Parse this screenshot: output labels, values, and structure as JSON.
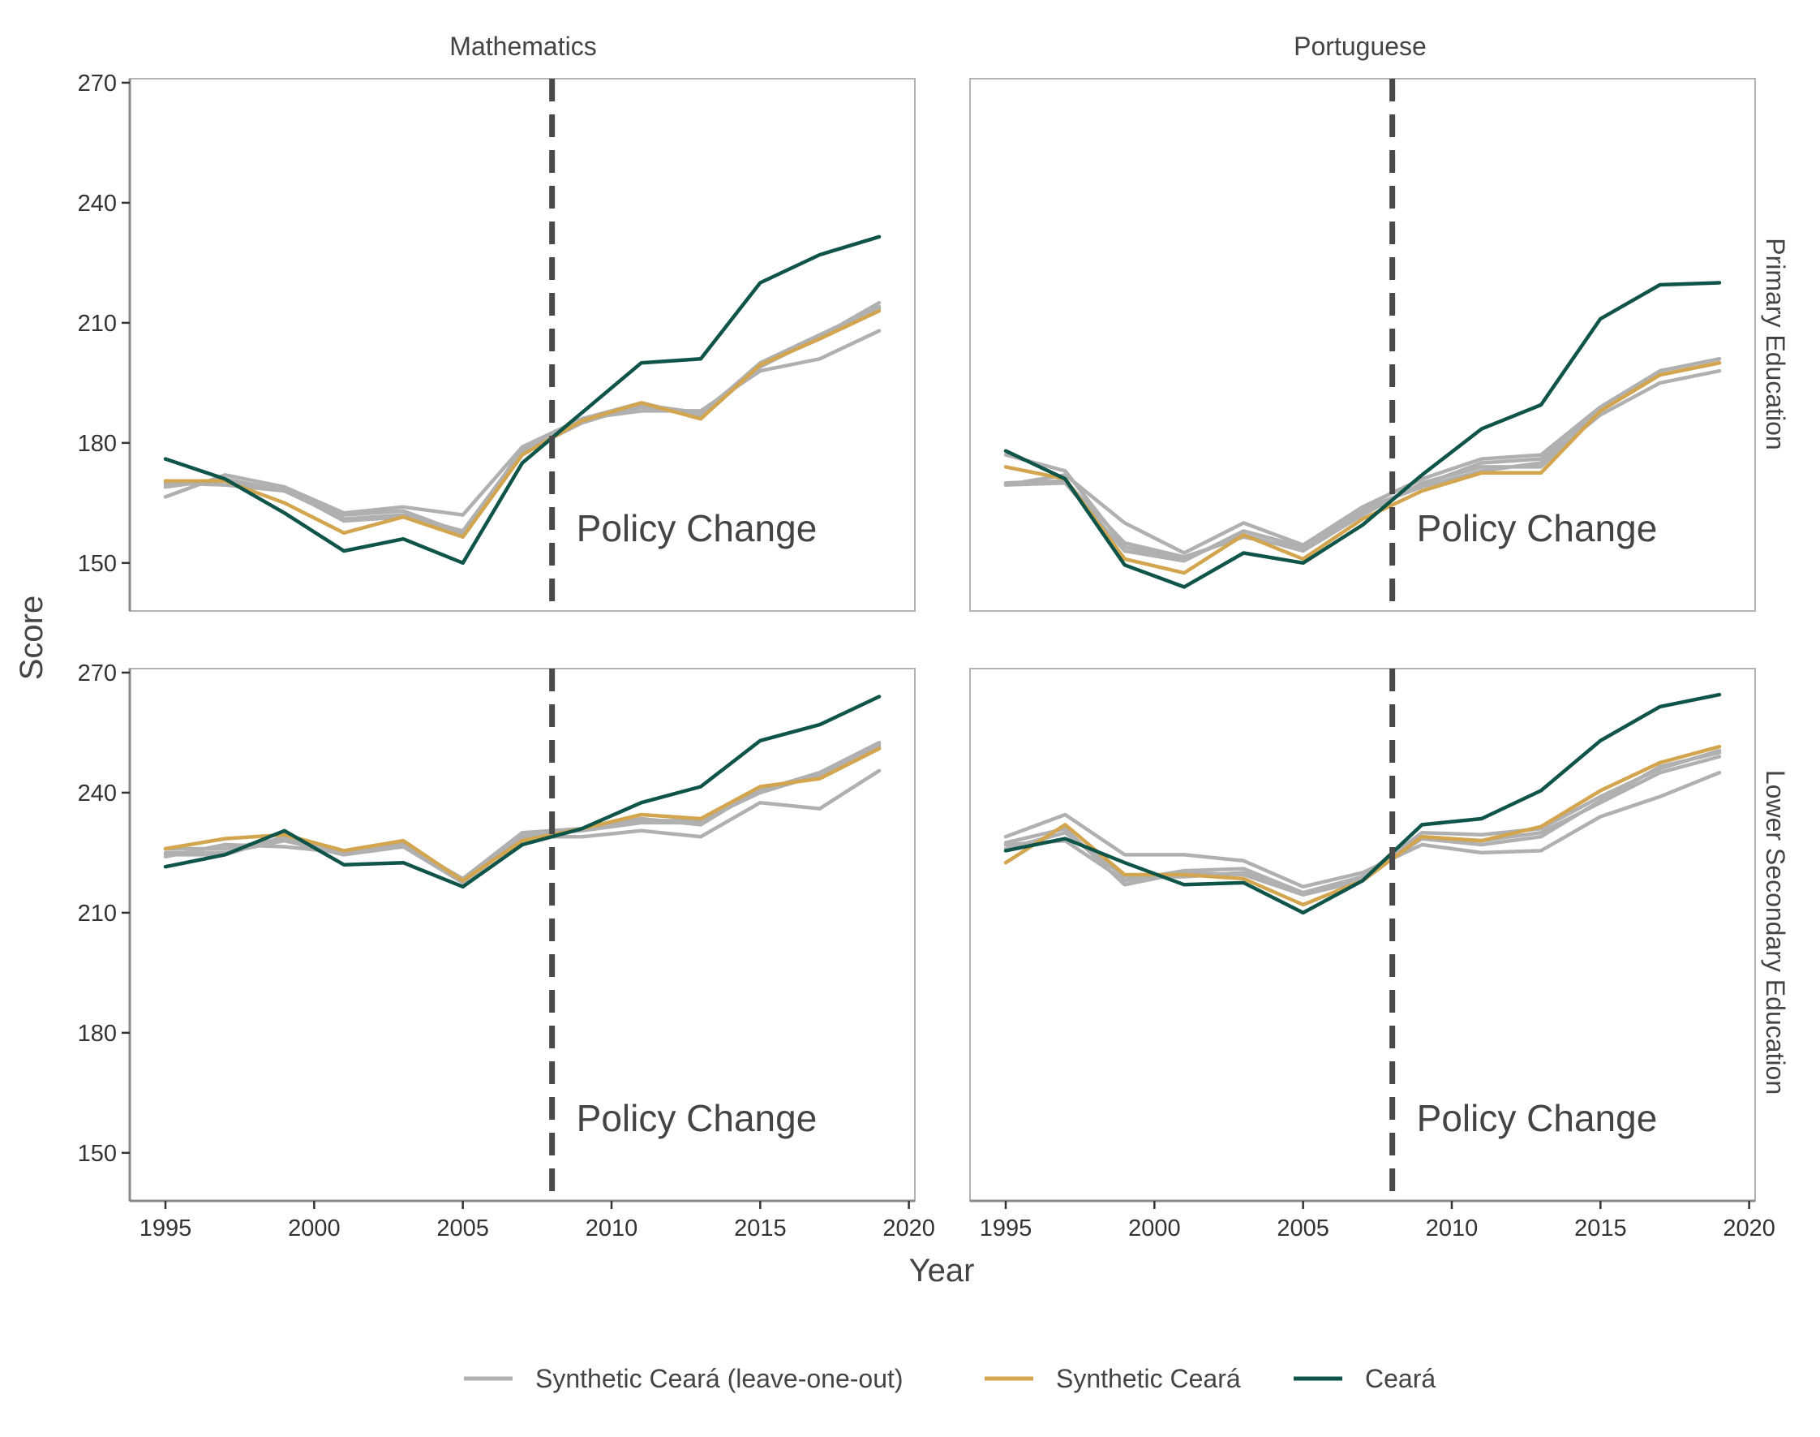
{
  "chart_data": {
    "type": "line",
    "xlabel": "Year",
    "ylabel": "Score",
    "x_ticks": [
      1995,
      2000,
      2005,
      2010,
      2015,
      2020
    ],
    "y_ticks": [
      150,
      180,
      210,
      240,
      270
    ],
    "xlim": [
      1993.8,
      2020.2
    ],
    "ylim": [
      138,
      271
    ],
    "grid": false,
    "legend_position": "bottom",
    "policy_line_year": 2008,
    "policy_label": "Policy Change",
    "legend": [
      {
        "name": "Synthetic Ceará (leave-one-out)",
        "color": "#b0b0b0"
      },
      {
        "name": "Synthetic Ceará",
        "color": "#d2a54e"
      },
      {
        "name": "Ceará",
        "color": "#0f5449"
      }
    ],
    "colors": {
      "loo": "#b0b0b0",
      "synthetic": "#d2a54e",
      "ceara": "#0f5449",
      "policy_line": "#4a4a4a"
    },
    "years": [
      1995,
      1997,
      1999,
      2001,
      2003,
      2005,
      2007,
      2009,
      2011,
      2013,
      2015,
      2017,
      2019
    ],
    "columns": [
      "Mathematics",
      "Portuguese"
    ],
    "rows": [
      "Primary Education",
      "Lower Secondary Education"
    ],
    "panels": [
      {
        "column": "Mathematics",
        "row": "Primary Education",
        "loo": [
          [
            166.5,
            172,
            169,
            162.5,
            164,
            162,
            179,
            186,
            188,
            188,
            198,
            201,
            208
          ],
          [
            169,
            171,
            168,
            161,
            162,
            158,
            178,
            185.5,
            189,
            187,
            200,
            207,
            214
          ],
          [
            169.5,
            170.5,
            168.5,
            160.5,
            161.5,
            157,
            178.5,
            186,
            190,
            186.5,
            199,
            206.5,
            215
          ],
          [
            170,
            169.5,
            168,
            162,
            163,
            157.5,
            177.5,
            185,
            189.5,
            187.5,
            199.5,
            206,
            213.5
          ]
        ],
        "synthetic": [
          170.5,
          170.5,
          165,
          157.5,
          161.5,
          156.5,
          177,
          185.5,
          190,
          186,
          199.5,
          206,
          213
        ],
        "ceara": [
          176,
          171,
          162.5,
          153,
          156,
          150,
          175,
          187.5,
          200,
          201,
          220,
          227,
          231.5
        ]
      },
      {
        "column": "Portuguese",
        "row": "Primary Education",
        "loo": [
          [
            169.5,
            172,
            160,
            152.5,
            160,
            154.5,
            164,
            171,
            176,
            177,
            189,
            198,
            201
          ],
          [
            177,
            173,
            154,
            151,
            157,
            153,
            162,
            170,
            174,
            174,
            188,
            197,
            200
          ],
          [
            169.5,
            170,
            153,
            150.5,
            158,
            154,
            163,
            169.5,
            175,
            176,
            188.5,
            198,
            201
          ],
          [
            170,
            170.5,
            155,
            151.5,
            156.5,
            153.5,
            163.5,
            169,
            173,
            175,
            187,
            195,
            198
          ]
        ],
        "synthetic": [
          174,
          171,
          151,
          147.5,
          157,
          151,
          161,
          168,
          172.5,
          172.5,
          188,
          197,
          200
        ],
        "ceara": [
          178,
          171,
          149.5,
          144,
          152.5,
          150,
          159.5,
          172,
          183.5,
          189.5,
          211,
          219.5,
          220
        ]
      },
      {
        "column": "Mathematics",
        "row": "Lower Secondary Education",
        "loo": [
          [
            224,
            227,
            226.5,
            225,
            226.5,
            218,
            229,
            229,
            230.5,
            229,
            237.5,
            236,
            245.5
          ],
          [
            226,
            226,
            228.5,
            225.5,
            227,
            218.5,
            230,
            231,
            233,
            233,
            240,
            244.5,
            252
          ],
          [
            224.5,
            224.5,
            229,
            225,
            227.5,
            218,
            229.5,
            230.5,
            232.5,
            232.5,
            240.5,
            245,
            252.5
          ],
          [
            225,
            225,
            228,
            224.5,
            226.5,
            217.5,
            228.5,
            231,
            233.5,
            232,
            241,
            244,
            251.5
          ]
        ],
        "synthetic": [
          226,
          228.5,
          229.5,
          225.5,
          228,
          218,
          228,
          231,
          234.5,
          233.5,
          241.5,
          243.5,
          251
        ],
        "ceara": [
          221.5,
          224.5,
          230.5,
          222,
          222.5,
          216.5,
          227,
          231,
          237.5,
          241.5,
          253,
          257,
          264
        ]
      },
      {
        "column": "Portuguese",
        "row": "Lower Secondary Education",
        "loo": [
          [
            229,
            234.5,
            224.5,
            224.5,
            223,
            216.5,
            220,
            227,
            225,
            225.5,
            234,
            239,
            245
          ],
          [
            227,
            228,
            218,
            220.5,
            221,
            215,
            219,
            230,
            229.5,
            231,
            239,
            246,
            250.5
          ],
          [
            227.5,
            231,
            217,
            220,
            219.5,
            214.5,
            218,
            229,
            228,
            230,
            237.5,
            245,
            249
          ],
          [
            226,
            230,
            219,
            219,
            220,
            215,
            219,
            228.5,
            227,
            229,
            238,
            246.5,
            250
          ]
        ],
        "synthetic": [
          222.5,
          232,
          219.5,
          219.5,
          218.5,
          212,
          218,
          229,
          228,
          231.5,
          240.5,
          247.5,
          251.5
        ],
        "ceara": [
          225.5,
          228.5,
          222.5,
          217,
          217.5,
          210,
          218,
          232,
          233.5,
          240.5,
          253,
          261.5,
          264.5
        ]
      }
    ]
  }
}
